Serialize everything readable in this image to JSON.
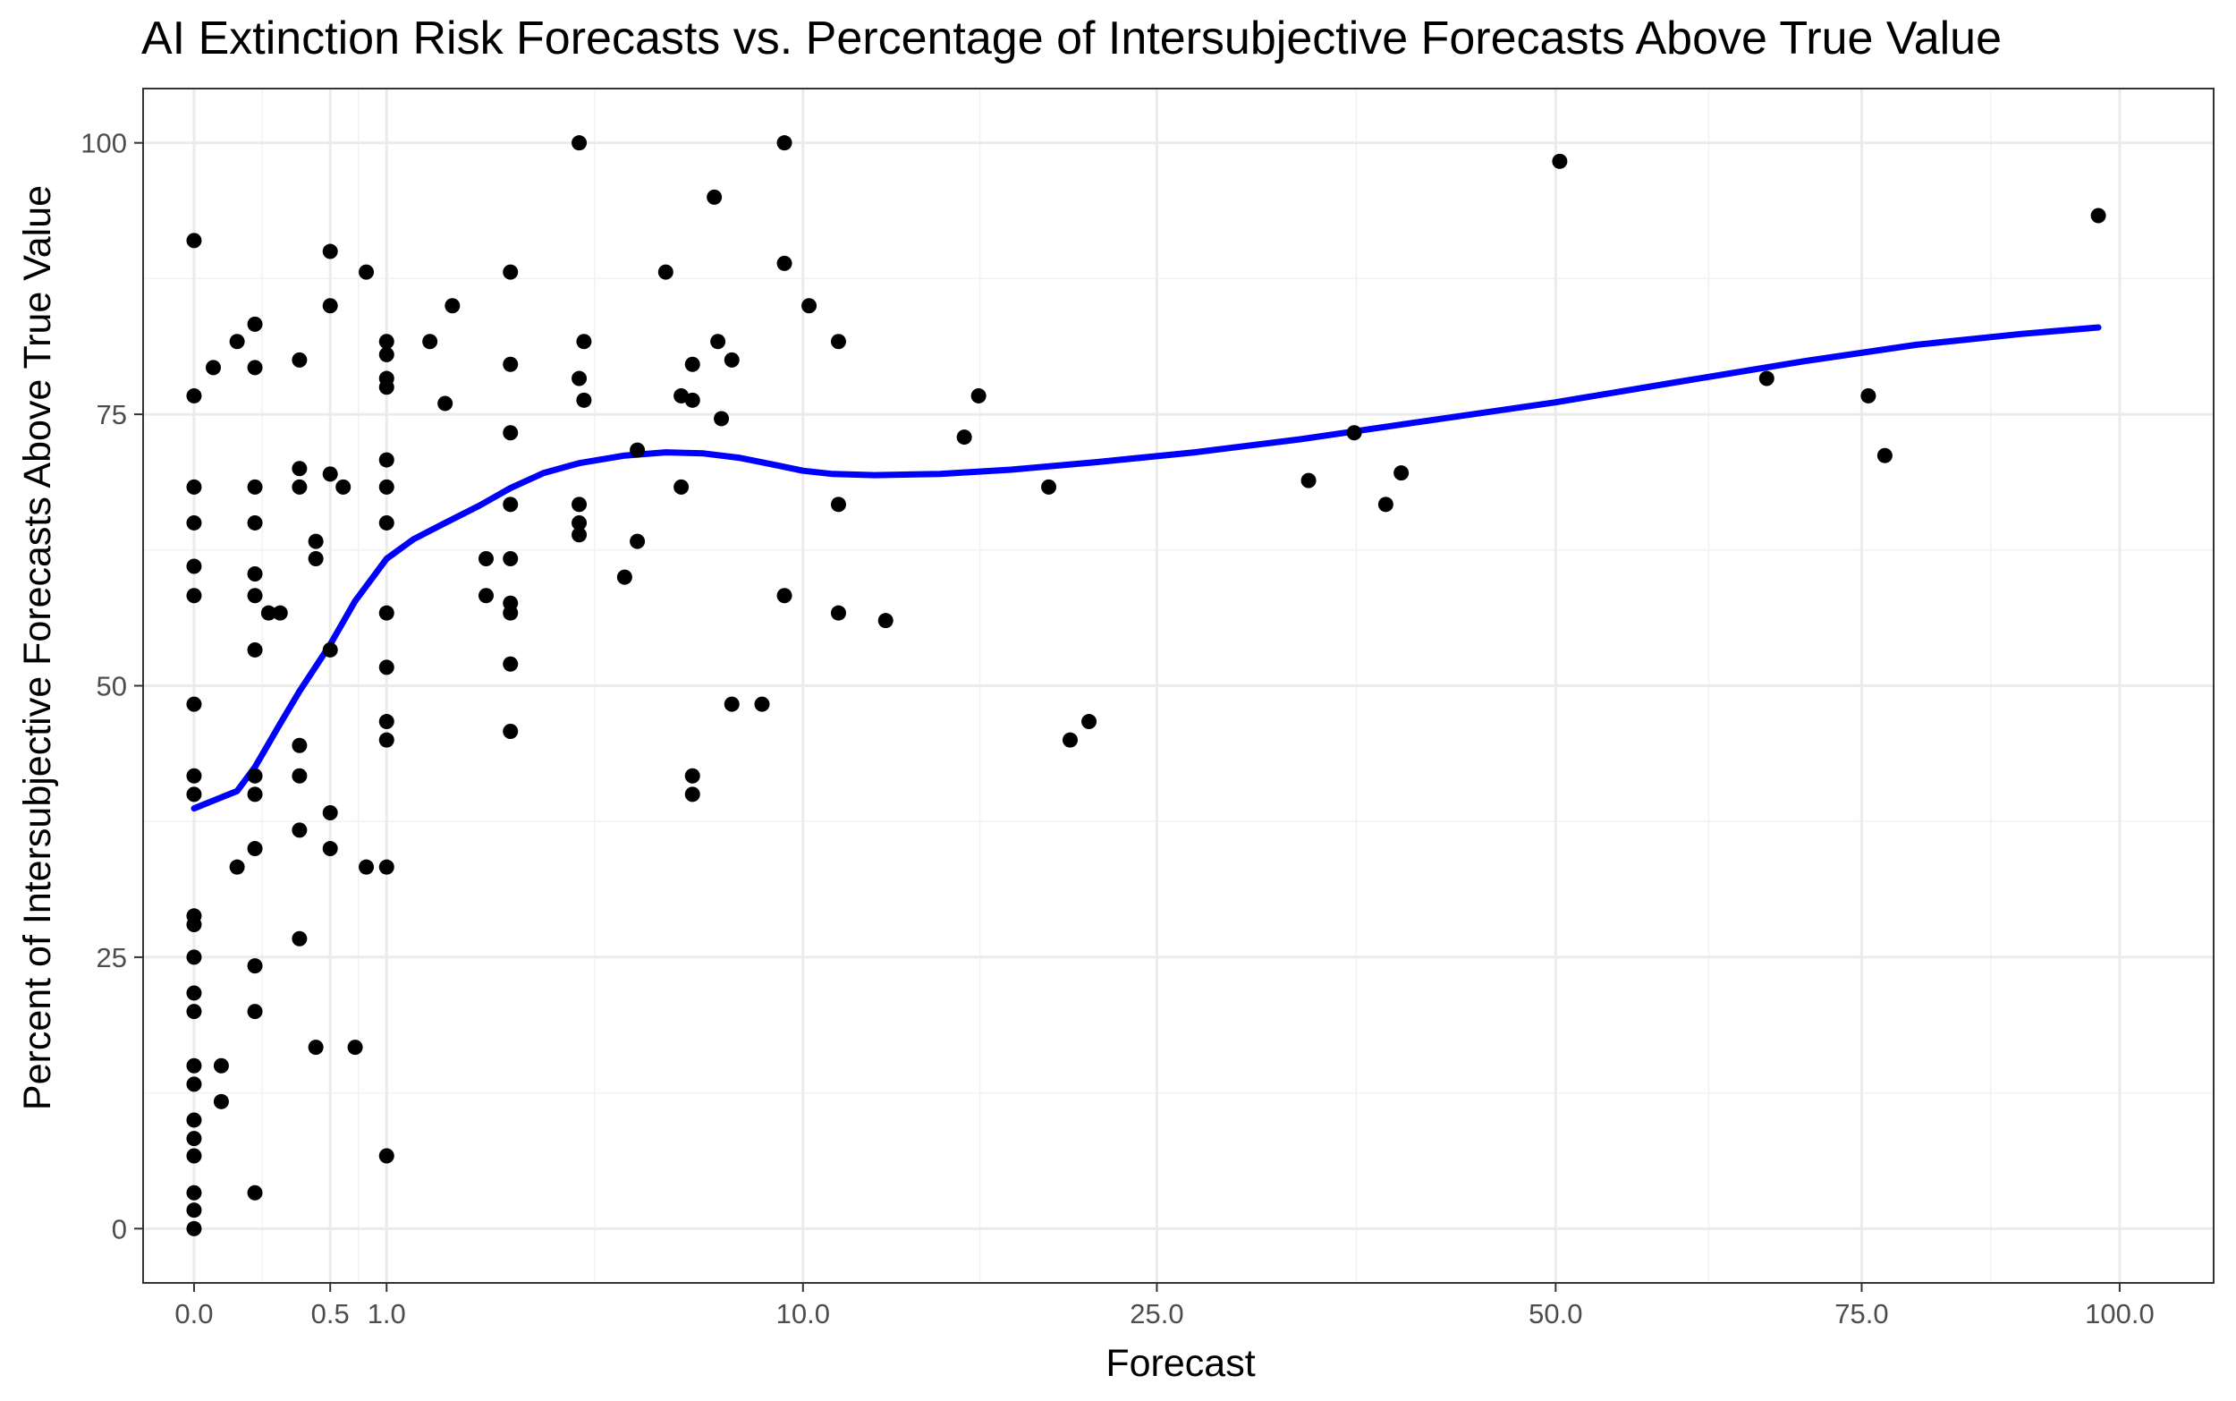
{
  "chart_data": {
    "type": "scatter",
    "title": "AI Extinction Risk Forecasts vs. Percentage of Intersubjective Forecasts Above True Value",
    "xlabel": "Forecast",
    "ylabel": "Percent of Intersubjective Forecasts Above True Value",
    "x_scale": "sqrt",
    "xlim": [
      -0.07,
      110
    ],
    "ylim": [
      -5,
      105
    ],
    "x_ticks": [
      0,
      0.5,
      1,
      10,
      25,
      50,
      75,
      100
    ],
    "x_tick_labels": [
      "0.0",
      "0.5",
      "1.0",
      "10.0",
      "25.0",
      "50.0",
      "75.0",
      "100.0"
    ],
    "y_ticks": [
      0,
      25,
      50,
      75,
      100
    ],
    "y_tick_labels": [
      "0",
      "25",
      "50",
      "75",
      "100"
    ],
    "grid": true,
    "series": [
      {
        "points": [
          [
            0,
            91
          ],
          [
            0,
            76.7
          ],
          [
            0,
            68.3
          ],
          [
            0,
            65
          ],
          [
            0,
            61
          ],
          [
            0,
            58.3
          ],
          [
            0,
            48.3
          ],
          [
            0,
            41.7
          ],
          [
            0,
            40
          ],
          [
            0,
            28.8
          ],
          [
            0,
            28
          ],
          [
            0,
            25
          ],
          [
            0,
            21.7
          ],
          [
            0,
            20
          ],
          [
            0,
            15
          ],
          [
            0,
            13.3
          ],
          [
            0,
            10
          ],
          [
            0,
            8.3
          ],
          [
            0,
            6.7
          ],
          [
            0,
            3.3
          ],
          [
            0,
            1.7
          ],
          [
            0,
            0
          ],
          [
            0.01,
            79.3
          ],
          [
            0.02,
            15
          ],
          [
            0.02,
            11.7
          ],
          [
            0.05,
            81.7
          ],
          [
            0.05,
            33.3
          ],
          [
            0.1,
            83.3
          ],
          [
            0.1,
            79.3
          ],
          [
            0.1,
            68.3
          ],
          [
            0.1,
            65
          ],
          [
            0.1,
            60.3
          ],
          [
            0.1,
            58.3
          ],
          [
            0.1,
            53.3
          ],
          [
            0.1,
            41.7
          ],
          [
            0.1,
            40
          ],
          [
            0.1,
            35
          ],
          [
            0.1,
            24.2
          ],
          [
            0.1,
            20
          ],
          [
            0.1,
            3.3
          ],
          [
            0.15,
            56.7
          ],
          [
            0.2,
            56.7
          ],
          [
            0.3,
            80
          ],
          [
            0.3,
            70
          ],
          [
            0.3,
            68.3
          ],
          [
            0.3,
            44.5
          ],
          [
            0.3,
            41.7
          ],
          [
            0.3,
            36.7
          ],
          [
            0.3,
            26.7
          ],
          [
            0.4,
            63.3
          ],
          [
            0.4,
            61.7
          ],
          [
            0.4,
            16.7
          ],
          [
            0.5,
            90
          ],
          [
            0.5,
            85
          ],
          [
            0.5,
            69.5
          ],
          [
            0.5,
            53.3
          ],
          [
            0.5,
            38.3
          ],
          [
            0.5,
            35
          ],
          [
            0.6,
            68.3
          ],
          [
            0.7,
            16.7
          ],
          [
            0.8,
            88.1
          ],
          [
            0.8,
            33.3
          ],
          [
            1,
            81.7
          ],
          [
            1,
            80.5
          ],
          [
            1,
            78.3
          ],
          [
            1,
            77.5
          ],
          [
            1,
            70.8
          ],
          [
            1,
            68.3
          ],
          [
            1,
            65
          ],
          [
            1,
            56.7
          ],
          [
            1,
            51.7
          ],
          [
            1,
            46.7
          ],
          [
            1,
            45
          ],
          [
            1,
            33.3
          ],
          [
            1,
            6.7
          ],
          [
            1.5,
            81.7
          ],
          [
            1.7,
            76
          ],
          [
            1.8,
            85
          ],
          [
            2.3,
            61.7
          ],
          [
            2.3,
            58.3
          ],
          [
            2.7,
            88.1
          ],
          [
            2.7,
            79.6
          ],
          [
            2.7,
            73.3
          ],
          [
            2.7,
            66.7
          ],
          [
            2.7,
            61.7
          ],
          [
            2.7,
            57.6
          ],
          [
            2.7,
            56.7
          ],
          [
            2.7,
            52
          ],
          [
            2.7,
            45.8
          ],
          [
            4,
            100
          ],
          [
            4,
            78.3
          ],
          [
            4,
            66.7
          ],
          [
            4,
            65
          ],
          [
            4,
            63.9
          ],
          [
            4.1,
            81.7
          ],
          [
            4.1,
            76.3
          ],
          [
            5,
            60
          ],
          [
            5.3,
            71.7
          ],
          [
            5.3,
            63.3
          ],
          [
            6,
            88.1
          ],
          [
            6.4,
            76.7
          ],
          [
            6.4,
            68.3
          ],
          [
            6.7,
            79.6
          ],
          [
            6.7,
            76.3
          ],
          [
            6.7,
            41.7
          ],
          [
            6.7,
            40
          ],
          [
            7.3,
            95
          ],
          [
            7.4,
            81.7
          ],
          [
            7.5,
            74.6
          ],
          [
            7.8,
            80
          ],
          [
            7.8,
            48.3
          ],
          [
            8.7,
            48.3
          ],
          [
            9.4,
            100
          ],
          [
            9.4,
            88.9
          ],
          [
            9.4,
            58.3
          ],
          [
            10.2,
            85
          ],
          [
            11.2,
            81.7
          ],
          [
            11.2,
            66.7
          ],
          [
            11.2,
            56.7
          ],
          [
            12.9,
            56
          ],
          [
            16,
            72.9
          ],
          [
            16.6,
            76.7
          ],
          [
            19.7,
            68.3
          ],
          [
            20.7,
            45
          ],
          [
            21.6,
            46.7
          ],
          [
            33.5,
            68.9
          ],
          [
            36.3,
            73.3
          ],
          [
            38.3,
            66.7
          ],
          [
            39.3,
            69.6
          ],
          [
            50.3,
            98.3
          ],
          [
            66.7,
            78.3
          ],
          [
            75.6,
            76.7
          ],
          [
            77.1,
            71.2
          ],
          [
            97.8,
            93.3
          ]
        ]
      }
    ],
    "smooth_curve": {
      "color": "#0000ff",
      "points": [
        [
          0,
          38.7
        ],
        [
          0.05,
          40.3
        ],
        [
          0.1,
          42.5
        ],
        [
          0.2,
          46.5
        ],
        [
          0.3,
          49.5
        ],
        [
          0.5,
          53.8
        ],
        [
          0.7,
          57.8
        ],
        [
          1,
          61.7
        ],
        [
          1.3,
          63.5
        ],
        [
          1.7,
          65
        ],
        [
          2.2,
          66.6
        ],
        [
          2.7,
          68.2
        ],
        [
          3.3,
          69.6
        ],
        [
          4,
          70.5
        ],
        [
          5,
          71.2
        ],
        [
          6,
          71.5
        ],
        [
          7,
          71.4
        ],
        [
          8,
          71
        ],
        [
          9,
          70.4
        ],
        [
          10,
          69.8
        ],
        [
          11,
          69.5
        ],
        [
          12.5,
          69.4
        ],
        [
          15,
          69.5
        ],
        [
          18,
          69.9
        ],
        [
          22,
          70.6
        ],
        [
          27,
          71.5
        ],
        [
          33,
          72.7
        ],
        [
          40,
          74.2
        ],
        [
          50,
          76.1
        ],
        [
          60,
          78.1
        ],
        [
          70,
          79.9
        ],
        [
          80,
          81.4
        ],
        [
          90,
          82.4
        ],
        [
          97.8,
          83
        ]
      ]
    }
  }
}
